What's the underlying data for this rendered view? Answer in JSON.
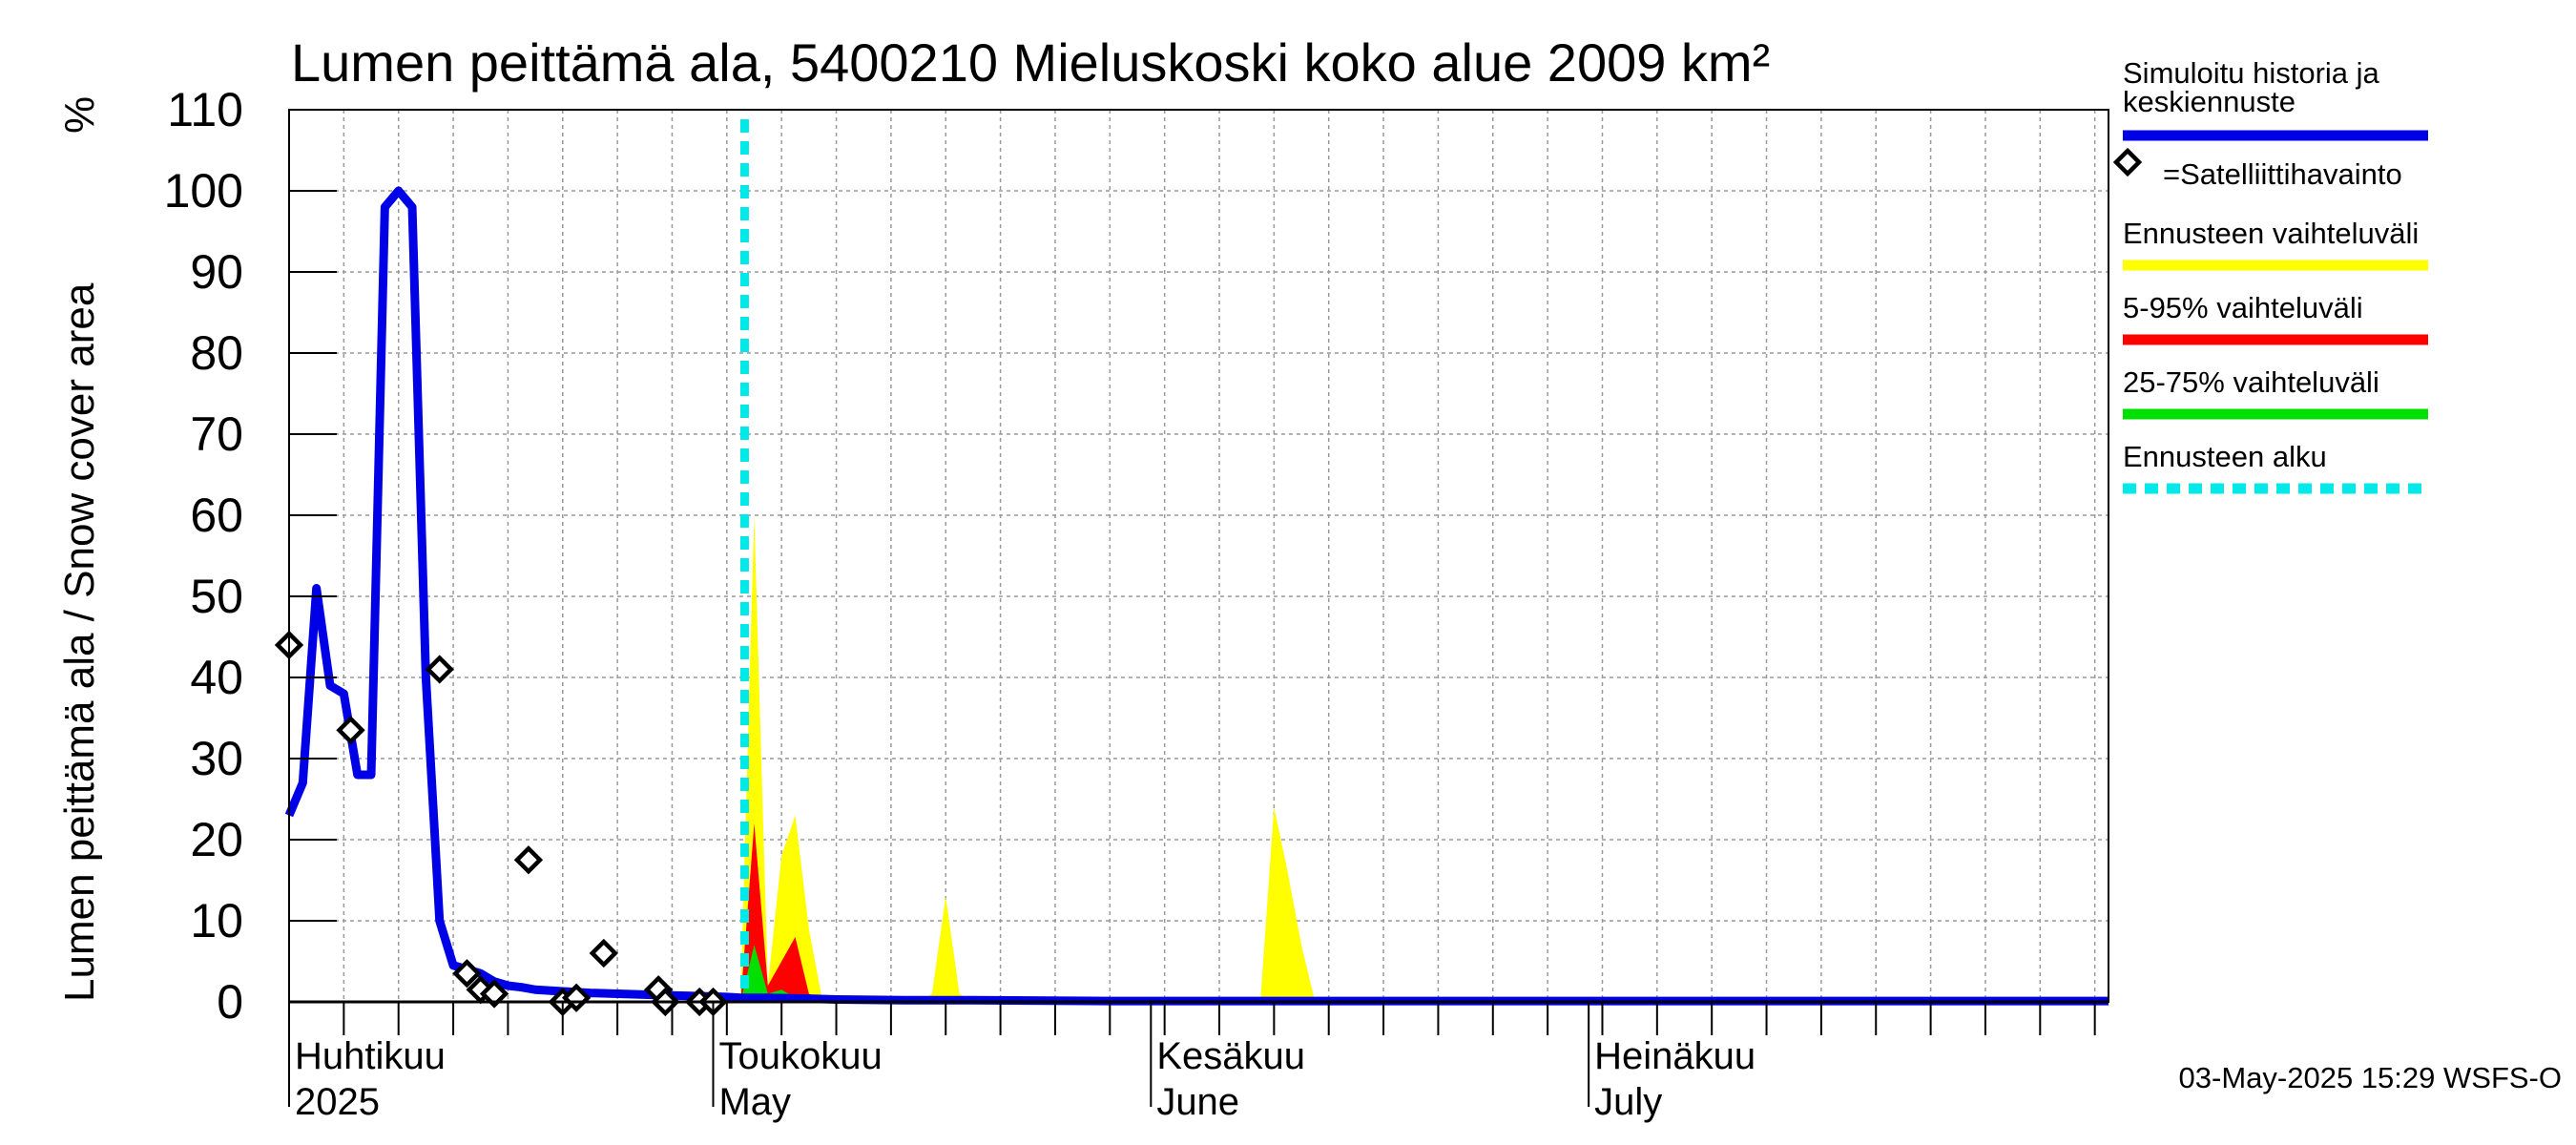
{
  "chart_data": {
    "type": "area",
    "title": "Lumen peittämä ala, 5400210 Mieluskoski koko alue 2009 km²",
    "ylabel": "Lumen peittämä ala / Snow cover area",
    "yunit": "%",
    "ylim": [
      0,
      110
    ],
    "yticks": [
      0,
      10,
      20,
      30,
      40,
      50,
      60,
      70,
      80,
      90,
      100,
      110
    ],
    "xlim_days": [
      0,
      133
    ],
    "grid": true,
    "month_labels": [
      {
        "day": 0,
        "fi": "Huhtikuu",
        "en": "2025"
      },
      {
        "day": 31,
        "fi": "Toukokuu",
        "en": "May"
      },
      {
        "day": 63,
        "fi": "Kesäkuu",
        "en": "June"
      },
      {
        "day": 95,
        "fi": "Heinäkuu",
        "en": "July"
      }
    ],
    "forecast_start_day": 33.3,
    "series": [
      {
        "name": "Simuloitu historia ja keskiennuste",
        "color": "#0000e6",
        "kind": "line",
        "x": [
          0,
          1,
          2,
          3,
          4,
          5,
          6,
          7,
          8,
          8.5,
          9,
          10,
          11,
          12,
          13,
          14,
          15,
          16,
          17,
          18,
          20,
          22,
          24,
          26,
          28,
          30,
          32,
          33,
          35,
          38,
          40,
          45,
          50,
          60,
          70,
          80,
          90,
          100,
          110,
          120,
          133
        ],
        "y": [
          23,
          27,
          51,
          39,
          38,
          28,
          28,
          98,
          100,
          99,
          98,
          40,
          10,
          4.5,
          4,
          3.5,
          2.5,
          2,
          1.8,
          1.5,
          1.3,
          1.1,
          1,
          0.9,
          0.8,
          0.7,
          0.6,
          0.5,
          0.5,
          0.4,
          0.3,
          0.2,
          0.2,
          0.1,
          0.1,
          0.1,
          0.1,
          0.1,
          0.1,
          0.1,
          0.1
        ]
      },
      {
        "name": "Ennusteen vaihteluväli",
        "color": "#ffff00",
        "kind": "band",
        "x": [
          33,
          34,
          35,
          36,
          37,
          38,
          39,
          40,
          41,
          42,
          43,
          44,
          45,
          46,
          47,
          48,
          49,
          50,
          60,
          70,
          71,
          72,
          73,
          74,
          75,
          80,
          90,
          100,
          110,
          133
        ],
        "y": [
          0,
          60,
          2,
          18,
          23,
          9,
          0,
          0,
          0,
          0,
          0,
          0,
          0,
          0,
          1,
          13,
          1,
          0,
          0,
          0,
          0,
          24,
          16,
          7,
          0,
          0,
          0,
          0,
          0,
          0
        ]
      },
      {
        "name": "5-95% vaihteluväli",
        "color": "#ff0000",
        "kind": "band",
        "x": [
          33,
          34,
          35,
          36,
          37,
          38,
          39,
          40,
          45,
          133
        ],
        "y": [
          0,
          22,
          2,
          5,
          8,
          1,
          0,
          0,
          0,
          0
        ]
      },
      {
        "name": "25-75% vaihteluväli",
        "color": "#00e000",
        "kind": "band",
        "x": [
          33,
          34,
          35,
          36,
          37,
          40,
          133
        ],
        "y": [
          0,
          7,
          1,
          1.5,
          0.5,
          0,
          0
        ]
      },
      {
        "name": "=Satelliittihavainto",
        "color": "#000000",
        "kind": "marker",
        "x": [
          0,
          4.5,
          11,
          13,
          14,
          15,
          17.5,
          20,
          21,
          23,
          27,
          27.5,
          30,
          31
        ],
        "y": [
          44,
          33.5,
          41,
          3.5,
          1.5,
          1,
          17.5,
          0,
          0.5,
          6,
          1.5,
          0,
          0,
          0
        ]
      }
    ],
    "legend": [
      {
        "label": "Simuloitu historia ja keskiennuste",
        "color": "#0000e6",
        "style": "solid"
      },
      {
        "label": "=Satelliittihavainto",
        "color": "#000000",
        "style": "marker"
      },
      {
        "label": "Ennusteen vaihteluväli",
        "color": "#ffff00",
        "style": "solid"
      },
      {
        "label": "5-95% vaihteluväli",
        "color": "#ff0000",
        "style": "solid"
      },
      {
        "label": "25-75% vaihteluväli",
        "color": "#00e000",
        "style": "solid"
      },
      {
        "label": "Ennusteen alku",
        "color": "#00e8e8",
        "style": "dashed"
      }
    ],
    "legend_position": "right",
    "footer": "03-May-2025 15:29 WSFS-O"
  }
}
